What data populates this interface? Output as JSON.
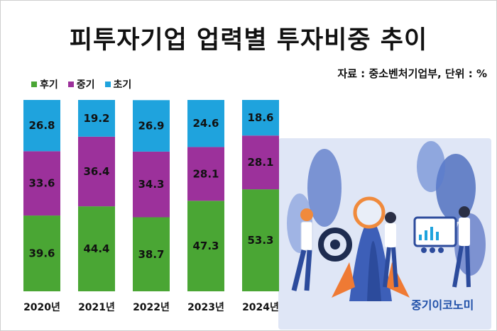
{
  "title": "피투자기업 업력별 투자비중 추이",
  "source_note": "자료 : 중소벤처기업부, 단위 : %",
  "brand": "중기이코노미",
  "colors": {
    "late": "#4aa634",
    "mid": "#9c319b",
    "early": "#1fa3dd"
  },
  "legend": [
    {
      "label": "후기",
      "color": "#4aa634"
    },
    {
      "label": "중기",
      "color": "#9c319b"
    },
    {
      "label": "초기",
      "color": "#1fa3dd"
    }
  ],
  "chart_data": {
    "type": "bar",
    "stacked": true,
    "categories": [
      "2020년",
      "2021년",
      "2022년",
      "2023년",
      "2024년"
    ],
    "series": [
      {
        "name": "후기",
        "values": [
          39.6,
          44.4,
          38.7,
          47.3,
          53.3
        ]
      },
      {
        "name": "중기",
        "values": [
          33.6,
          36.4,
          34.3,
          28.1,
          28.1
        ]
      },
      {
        "name": "초기",
        "values": [
          26.8,
          19.2,
          26.9,
          24.6,
          18.6
        ]
      }
    ],
    "ylim": [
      0,
      100
    ],
    "grid": false,
    "legend_position": "top-left"
  }
}
